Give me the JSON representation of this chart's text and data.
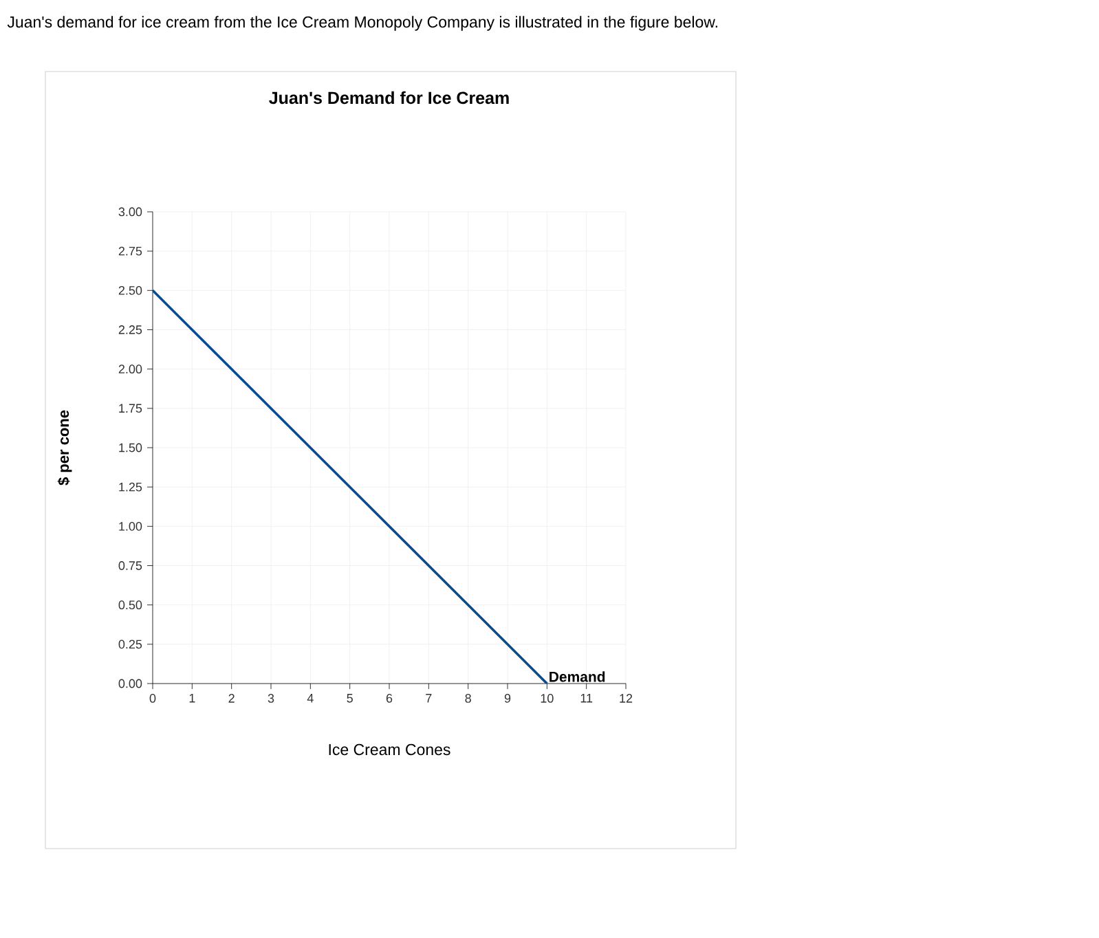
{
  "chart_data": {
    "type": "line",
    "title": "Juan's Demand for Ice Cream",
    "xlabel": "Ice Cream Cones",
    "ylabel": "$ per cone",
    "annotations": [
      "Juan's demand for ice cream from the Ice Cream Monopoly Company is illustrated in the figure below."
    ],
    "x": [
      0,
      10
    ],
    "series": [
      {
        "name": "Demand",
        "color": "#0b4a8c",
        "values": [
          2.5,
          0
        ]
      }
    ],
    "xlim": [
      0,
      12
    ],
    "xticks": [
      0,
      1,
      2,
      3,
      4,
      5,
      6,
      7,
      8,
      9,
      10,
      11,
      12
    ],
    "ylim": [
      0,
      3
    ],
    "yticks": [
      {
        "value": 0,
        "label": "0.00"
      },
      {
        "value": 0.25,
        "label": "0.25"
      },
      {
        "value": 0.5,
        "label": "0.50"
      },
      {
        "value": 0.75,
        "label": "0.75"
      },
      {
        "value": 1,
        "label": "1.00"
      },
      {
        "value": 1.25,
        "label": "1.25"
      },
      {
        "value": 1.5,
        "label": "1.50"
      },
      {
        "value": 1.75,
        "label": "1.75"
      },
      {
        "value": 2,
        "label": "2.00"
      },
      {
        "value": 2.25,
        "label": "2.25"
      },
      {
        "value": 2.5,
        "label": "2.50"
      },
      {
        "value": 2.75,
        "label": "2.75"
      },
      {
        "value": 3,
        "label": "3.00"
      }
    ],
    "grid": true,
    "legend": false,
    "marker": "none",
    "line_style": "solid"
  }
}
